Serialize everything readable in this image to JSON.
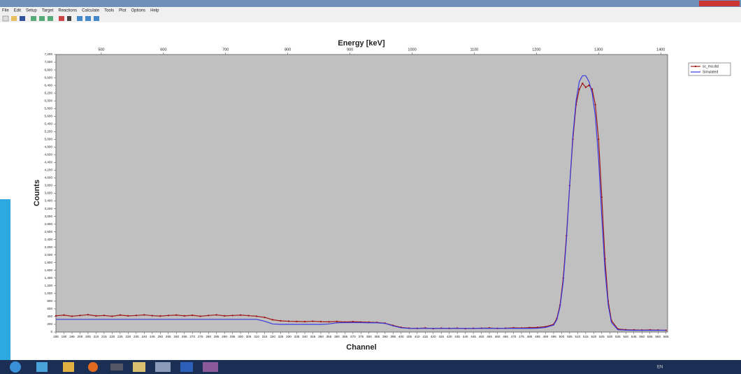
{
  "menu": [
    "File",
    "Edit",
    "Setup",
    "Target",
    "Reactions",
    "Calculate",
    "Tools",
    "Plot",
    "Options",
    "Help"
  ],
  "taskbar": {
    "language": "EN"
  },
  "chart_data": {
    "type": "line",
    "title": "Energy [keV]",
    "x_label": "Channel",
    "y_label": "Counts",
    "xlim": [
      185,
      566
    ],
    "xticks": [
      185,
      190,
      195,
      200,
      205,
      210,
      215,
      220,
      225,
      230,
      235,
      240,
      245,
      250,
      255,
      260,
      265,
      270,
      275,
      280,
      285,
      290,
      295,
      300,
      305,
      310,
      315,
      320,
      325,
      330,
      335,
      340,
      345,
      350,
      355,
      360,
      365,
      370,
      375,
      380,
      385,
      390,
      395,
      400,
      405,
      410,
      415,
      420,
      425,
      430,
      435,
      440,
      445,
      450,
      455,
      460,
      465,
      470,
      475,
      480,
      485,
      490,
      495,
      500,
      505,
      510,
      515,
      520,
      525,
      530,
      535,
      540,
      545,
      550,
      555,
      560,
      565
    ],
    "x2lim": [
      427,
      1411
    ],
    "x2ticks": [
      500,
      600,
      700,
      800,
      900,
      1000,
      1100,
      1200,
      1300,
      1400
    ],
    "ylim": [
      0,
      7200
    ],
    "yticks": [
      0,
      200,
      400,
      600,
      800,
      {
        "value": 1000,
        "label": "1,000"
      },
      {
        "value": 1200,
        "label": "1,200"
      },
      {
        "value": 1400,
        "label": "1,400"
      },
      {
        "value": 1600,
        "label": "1,600"
      },
      {
        "value": 1800,
        "label": "1,800"
      },
      {
        "value": 2000,
        "label": "2,000"
      },
      {
        "value": 2200,
        "label": "2,200"
      },
      {
        "value": 2400,
        "label": "2,400"
      },
      {
        "value": 2600,
        "label": "2,600"
      },
      {
        "value": 2800,
        "label": "2,800"
      },
      {
        "value": 3000,
        "label": "3,000"
      },
      {
        "value": 3200,
        "label": "3,200"
      },
      {
        "value": 3400,
        "label": "3,400"
      },
      {
        "value": 3600,
        "label": "3,600"
      },
      {
        "value": 3800,
        "label": "3,800"
      },
      {
        "value": 4000,
        "label": "4,000"
      },
      {
        "value": 4200,
        "label": "4,200"
      },
      {
        "value": 4400,
        "label": "4,400"
      },
      {
        "value": 4600,
        "label": "4,600"
      },
      {
        "value": 4800,
        "label": "4,800"
      },
      {
        "value": 5000,
        "label": "5,000"
      },
      {
        "value": 5200,
        "label": "5,200"
      },
      {
        "value": 5400,
        "label": "5,400"
      },
      {
        "value": 5600,
        "label": "5,600"
      },
      {
        "value": 5800,
        "label": "5,800"
      },
      {
        "value": 6000,
        "label": "6,000"
      },
      {
        "value": 6200,
        "label": "6,200"
      },
      {
        "value": 6400,
        "label": "6,400"
      },
      {
        "value": 6600,
        "label": "6,600"
      },
      {
        "value": 6800,
        "label": "6,800"
      },
      {
        "value": 7000,
        "label": "7,000"
      },
      {
        "value": 7200,
        "label": "7,200"
      }
    ],
    "x": [
      185,
      190,
      195,
      200,
      205,
      210,
      215,
      220,
      225,
      230,
      235,
      240,
      245,
      250,
      255,
      260,
      265,
      270,
      275,
      280,
      285,
      290,
      295,
      300,
      305,
      310,
      315,
      320,
      325,
      330,
      335,
      340,
      345,
      350,
      355,
      360,
      365,
      370,
      375,
      380,
      385,
      390,
      395,
      400,
      405,
      410,
      415,
      420,
      425,
      430,
      435,
      440,
      445,
      450,
      455,
      460,
      465,
      470,
      475,
      480,
      485,
      490,
      495,
      497,
      499,
      501,
      503,
      505,
      507,
      509,
      511,
      513,
      515,
      517,
      519,
      521,
      523,
      525,
      527,
      529,
      531,
      535,
      540,
      545,
      550,
      555,
      560,
      565
    ],
    "series": [
      {
        "name": "sc_ma.dat",
        "color": "#a01818",
        "markers": true,
        "values": [
          420,
          440,
          410,
          430,
          450,
          420,
          430,
          410,
          440,
          420,
          430,
          445,
          425,
          415,
          430,
          440,
          420,
          435,
          410,
          430,
          445,
          420,
          430,
          440,
          425,
          410,
          380,
          320,
          290,
          280,
          275,
          270,
          280,
          270,
          265,
          275,
          260,
          270,
          260,
          255,
          250,
          230,
          170,
          120,
          100,
          95,
          105,
          90,
          100,
          95,
          100,
          90,
          95,
          100,
          105,
          95,
          100,
          110,
          105,
          115,
          120,
          140,
          200,
          350,
          700,
          1400,
          2500,
          3800,
          5000,
          5900,
          6300,
          6450,
          6350,
          6400,
          6300,
          5900,
          5000,
          3500,
          1900,
          800,
          300,
          80,
          60,
          55,
          50,
          55,
          50,
          45
        ]
      },
      {
        "name": "Simulated",
        "color": "#3a3ae0",
        "markers": false,
        "values": [
          330,
          330,
          330,
          330,
          330,
          330,
          330,
          330,
          330,
          330,
          330,
          330,
          330,
          330,
          330,
          330,
          330,
          330,
          330,
          330,
          330,
          330,
          330,
          330,
          330,
          330,
          280,
          210,
          200,
          200,
          200,
          200,
          200,
          200,
          210,
          240,
          245,
          245,
          245,
          240,
          240,
          225,
          160,
          110,
          95,
          95,
          95,
          95,
          95,
          95,
          95,
          95,
          95,
          95,
          95,
          95,
          95,
          95,
          95,
          95,
          100,
          120,
          180,
          320,
          650,
          1300,
          2400,
          3800,
          5100,
          6000,
          6500,
          6650,
          6650,
          6500,
          6200,
          5600,
          4500,
          3000,
          1600,
          700,
          250,
          60,
          50,
          45,
          45,
          45,
          45,
          45
        ]
      }
    ]
  }
}
